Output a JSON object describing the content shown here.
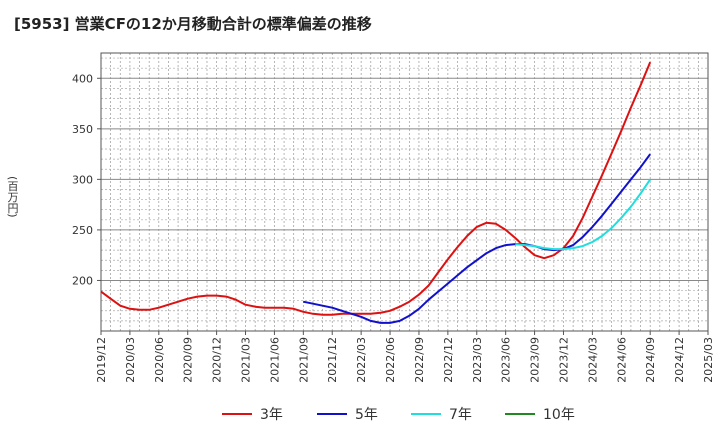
{
  "chart_data": {
    "type": "line",
    "title": "[5953]  営業CFの12か月移動合計の標準偏差の推移",
    "ylabel": "(百万円)",
    "xlabel": "",
    "ylim": [
      150,
      425
    ],
    "y_ticks": [
      200,
      250,
      300,
      350,
      400
    ],
    "x_ticks": [
      "2019/12",
      "2020/03",
      "2020/06",
      "2020/09",
      "2020/12",
      "2021/03",
      "2021/06",
      "2021/09",
      "2021/12",
      "2022/03",
      "2022/06",
      "2022/09",
      "2022/12",
      "2023/03",
      "2023/06",
      "2023/09",
      "2023/12",
      "2024/03",
      "2024/06",
      "2024/09",
      "2024/12",
      "2025/03"
    ],
    "grid": true,
    "legend_position": "bottom",
    "series": [
      {
        "name": "3年",
        "color": "#dd1111",
        "x": [
          "2019/12",
          "2020/01",
          "2020/02",
          "2020/03",
          "2020/04",
          "2020/05",
          "2020/06",
          "2020/07",
          "2020/08",
          "2020/09",
          "2020/10",
          "2020/11",
          "2020/12",
          "2021/01",
          "2021/02",
          "2021/03",
          "2021/04",
          "2021/05",
          "2021/06",
          "2021/07",
          "2021/08",
          "2021/09",
          "2021/10",
          "2021/11",
          "2021/12",
          "2022/01",
          "2022/02",
          "2022/03",
          "2022/04",
          "2022/05",
          "2022/06",
          "2022/07",
          "2022/08",
          "2022/09",
          "2022/10",
          "2022/11",
          "2022/12",
          "2023/01",
          "2023/02",
          "2023/03",
          "2023/04",
          "2023/05",
          "2023/06",
          "2023/07",
          "2023/08",
          "2023/09",
          "2023/10",
          "2023/11",
          "2023/12",
          "2024/01",
          "2024/02",
          "2024/03",
          "2024/04",
          "2024/05",
          "2024/06",
          "2024/07",
          "2024/08",
          "2024/09"
        ],
        "values": [
          189,
          182,
          175,
          172,
          171,
          171,
          173,
          176,
          179,
          182,
          184,
          185,
          185,
          184,
          181,
          176,
          174,
          173,
          173,
          173,
          172,
          169,
          167,
          166,
          166,
          167,
          167,
          167,
          167,
          168,
          170,
          174,
          179,
          186,
          195,
          208,
          221,
          233,
          244,
          253,
          257,
          256,
          250,
          242,
          233,
          225,
          222,
          225,
          232,
          244,
          262,
          283,
          304,
          326,
          348,
          371,
          393,
          416
        ]
      },
      {
        "name": "5年",
        "color": "#1111cc",
        "x": [
          "2021/09",
          "2021/10",
          "2021/11",
          "2021/12",
          "2022/01",
          "2022/02",
          "2022/03",
          "2022/04",
          "2022/05",
          "2022/06",
          "2022/07",
          "2022/08",
          "2022/09",
          "2022/10",
          "2022/11",
          "2022/12",
          "2023/01",
          "2023/02",
          "2023/03",
          "2023/04",
          "2023/05",
          "2023/06",
          "2023/07",
          "2023/08",
          "2023/09",
          "2023/10",
          "2023/11",
          "2023/12",
          "2024/01",
          "2024/02",
          "2024/03",
          "2024/04",
          "2024/05",
          "2024/06",
          "2024/07",
          "2024/08",
          "2024/09"
        ],
        "values": [
          179,
          177,
          175,
          173,
          170,
          167,
          164,
          160,
          158,
          158,
          160,
          165,
          172,
          181,
          189,
          197,
          205,
          213,
          220,
          227,
          232,
          235,
          236,
          236,
          234,
          231,
          230,
          231,
          235,
          243,
          253,
          264,
          276,
          288,
          300,
          312,
          325
        ]
      },
      {
        "name": "7年",
        "color": "#22dddd",
        "x": [
          "2023/07",
          "2023/08",
          "2023/09",
          "2023/10",
          "2023/11",
          "2023/12",
          "2024/01",
          "2024/02",
          "2024/03",
          "2024/04",
          "2024/05",
          "2024/06",
          "2024/07",
          "2024/08",
          "2024/09"
        ],
        "values": [
          236,
          235,
          234,
          232,
          231,
          231,
          232,
          234,
          238,
          244,
          252,
          262,
          273,
          286,
          300
        ]
      },
      {
        "name": "10年",
        "color": "#228822",
        "x": [],
        "values": []
      }
    ]
  }
}
